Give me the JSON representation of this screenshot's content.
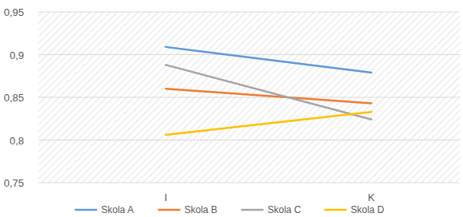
{
  "chart_data": {
    "type": "line",
    "categories": [
      "I",
      "K"
    ],
    "series": [
      {
        "name": "Skola A",
        "color": "#5b9bd5",
        "values": [
          0.909,
          0.879
        ]
      },
      {
        "name": "Skola B",
        "color": "#ed7d31",
        "values": [
          0.86,
          0.843
        ]
      },
      {
        "name": "Skola C",
        "color": "#a5a5a5",
        "values": [
          0.888,
          0.824
        ]
      },
      {
        "name": "Skola D",
        "color": "#ffc000",
        "values": [
          0.806,
          0.833
        ]
      }
    ],
    "ylim": [
      0.75,
      0.95
    ],
    "yticks": [
      {
        "value": 0.75,
        "label": "0,75"
      },
      {
        "value": 0.8,
        "label": "0,8"
      },
      {
        "value": 0.85,
        "label": "0,85"
      },
      {
        "value": 0.9,
        "label": "0,9"
      },
      {
        "value": 0.95,
        "label": "0,95"
      }
    ],
    "grid": true,
    "legend": "bottom"
  }
}
